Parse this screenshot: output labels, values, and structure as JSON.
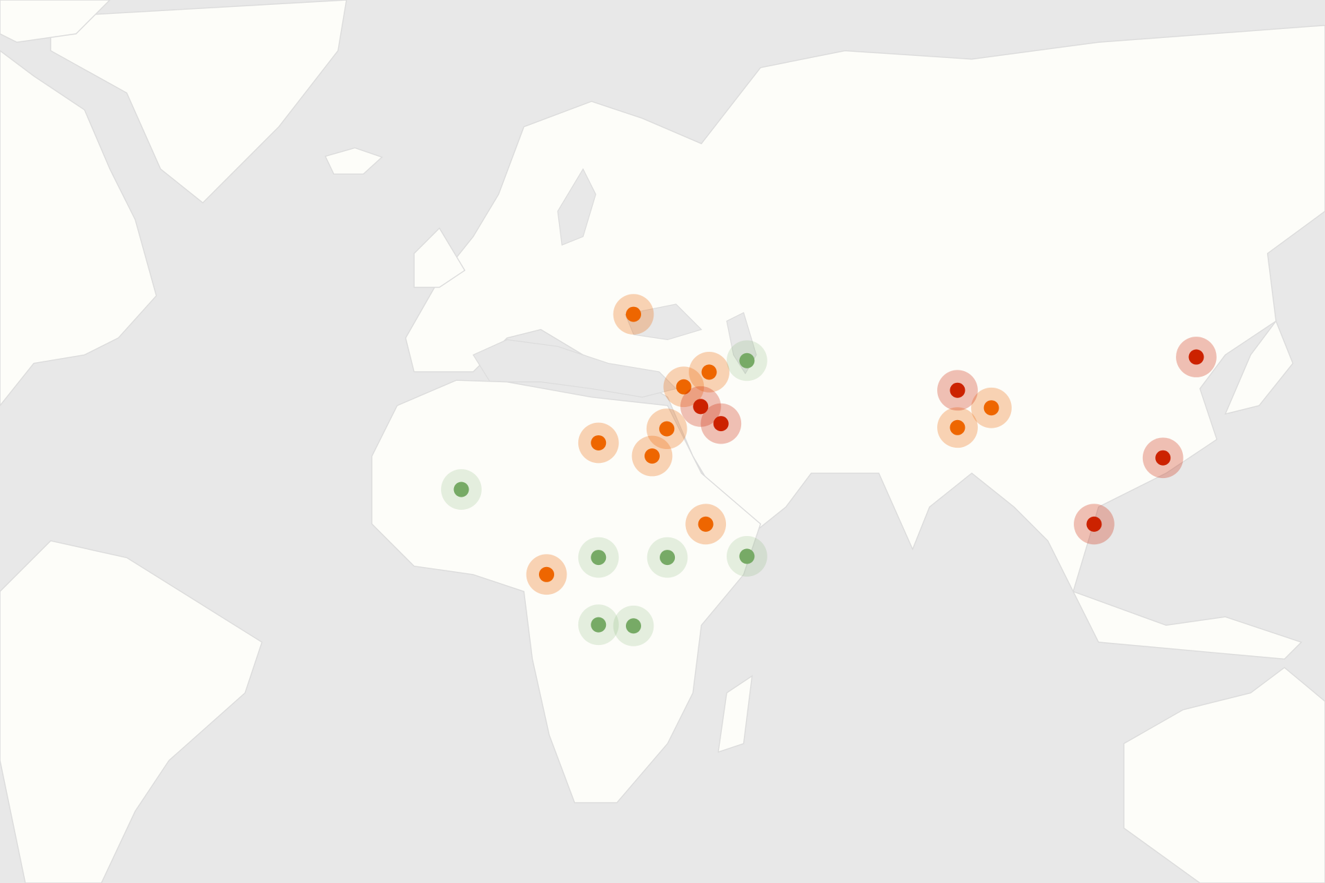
{
  "map": {
    "projection": "mercator",
    "colors": {
      "ocean": "#e8e8e8",
      "land": "#fdfdf9",
      "border": "#dcdcdc",
      "high": "#cc2200",
      "medium": "#ee6600",
      "low": "#77aa66"
    },
    "markers": [
      {
        "level": "medium",
        "lat": 45.0,
        "lon": 26.0
      },
      {
        "level": "medium",
        "lat": 37.3,
        "lon": 39.4
      },
      {
        "level": "medium",
        "lat": 35.2,
        "lon": 34.9
      },
      {
        "level": "medium",
        "lat": 28.9,
        "lon": 31.9
      },
      {
        "level": "medium",
        "lat": 26.7,
        "lon": 19.8
      },
      {
        "level": "medium",
        "lat": 24.6,
        "lon": 29.3
      },
      {
        "level": "medium",
        "lat": 13.2,
        "lon": 38.8
      },
      {
        "level": "medium",
        "lat": 4.4,
        "lon": 10.6
      },
      {
        "level": "medium",
        "lat": 29.1,
        "lon": 83.4
      },
      {
        "level": "medium",
        "lat": 32.1,
        "lon": 89.4
      },
      {
        "level": "high",
        "lat": 32.3,
        "lon": 37.9
      },
      {
        "level": "high",
        "lat": 29.7,
        "lon": 41.5
      },
      {
        "level": "high",
        "lat": 34.7,
        "lon": 83.4
      },
      {
        "level": "high",
        "lat": 39.4,
        "lon": 125.7
      },
      {
        "level": "high",
        "lat": 24.3,
        "lon": 119.8
      },
      {
        "level": "high",
        "lat": 13.2,
        "lon": 107.6
      },
      {
        "level": "low",
        "lat": 38.9,
        "lon": 46.1
      },
      {
        "level": "low",
        "lat": 19.1,
        "lon": -4.5
      },
      {
        "level": "low",
        "lat": 7.4,
        "lon": 19.8
      },
      {
        "level": "low",
        "lat": 7.4,
        "lon": 32.0
      },
      {
        "level": "low",
        "lat": 7.6,
        "lon": 46.1
      },
      {
        "level": "low",
        "lat": -4.5,
        "lon": 19.8
      },
      {
        "level": "low",
        "lat": -4.7,
        "lon": 26.0
      }
    ]
  }
}
